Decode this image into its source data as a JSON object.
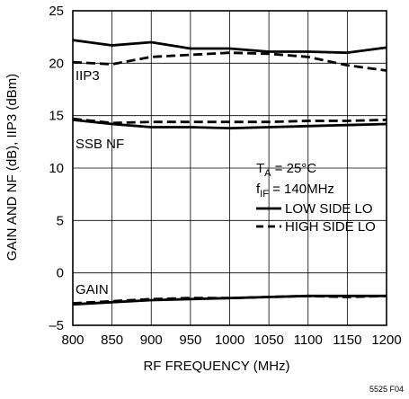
{
  "chart_data": {
    "type": "line",
    "xlabel": "RF FREQUENCY (MHz)",
    "ylabel": "GAIN AND NF (dB), IIP3 (dBm)",
    "xlim": [
      800,
      1200
    ],
    "ylim": [
      -5,
      25
    ],
    "xticks": [
      800,
      850,
      900,
      950,
      1000,
      1050,
      1100,
      1150,
      1200
    ],
    "yticks": [
      -5,
      0,
      5,
      10,
      15,
      20,
      25
    ],
    "grid": true,
    "annotations": {
      "iip3": "IIP3",
      "ssb_nf": "SSB NF",
      "gain": "GAIN",
      "figure_id": "5525 F04"
    },
    "conditions": {
      "ta_main": "T",
      "ta_sub": "A",
      "ta_value": " = 25°C",
      "fif_main": "f",
      "fif_sub": "IF",
      "fif_value": " = 140MHz"
    },
    "legend": {
      "position": "right",
      "entries": [
        {
          "label": "LOW SIDE LO",
          "style": "solid"
        },
        {
          "label": "HIGH SIDE LO",
          "style": "dashed"
        }
      ]
    },
    "x": [
      800,
      850,
      900,
      950,
      1000,
      1050,
      1100,
      1150,
      1200
    ],
    "series": [
      {
        "group": "IIP3",
        "style": "solid",
        "values": [
          22.2,
          21.7,
          22.0,
          21.4,
          21.4,
          21.1,
          21.1,
          21.0,
          21.5
        ]
      },
      {
        "group": "IIP3",
        "style": "dashed",
        "values": [
          20.1,
          19.9,
          20.6,
          20.8,
          21.0,
          20.9,
          20.6,
          19.8,
          19.3
        ]
      },
      {
        "group": "SSB NF",
        "style": "solid",
        "values": [
          14.6,
          14.2,
          13.9,
          13.9,
          13.8,
          13.9,
          14.0,
          14.1,
          14.2
        ]
      },
      {
        "group": "SSB NF",
        "style": "dashed",
        "values": [
          14.7,
          14.3,
          14.4,
          14.4,
          14.4,
          14.4,
          14.5,
          14.5,
          14.6
        ]
      },
      {
        "group": "GAIN",
        "style": "solid",
        "values": [
          -3.0,
          -2.8,
          -2.6,
          -2.5,
          -2.4,
          -2.3,
          -2.2,
          -2.2,
          -2.2
        ]
      },
      {
        "group": "GAIN",
        "style": "dashed",
        "values": [
          -2.9,
          -2.7,
          -2.5,
          -2.4,
          -2.4,
          -2.3,
          -2.2,
          -2.3,
          -2.2
        ]
      }
    ]
  }
}
